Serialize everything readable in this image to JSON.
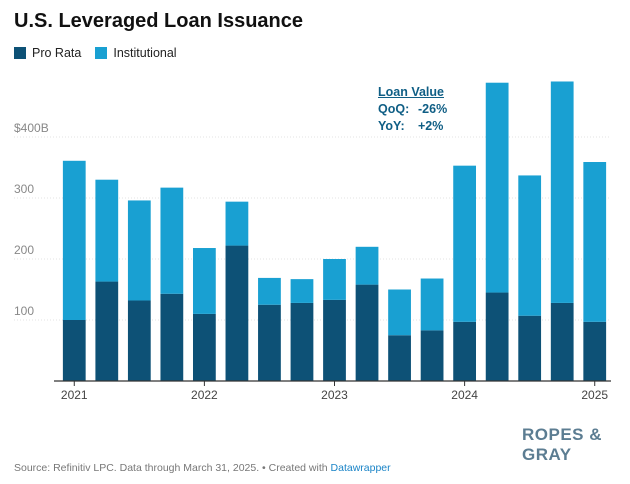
{
  "title": "U.S. Leveraged Loan Issuance",
  "legend": [
    {
      "label": "Pro Rata",
      "color": "#0d5176"
    },
    {
      "label": "Institutional",
      "color": "#19a0d2"
    }
  ],
  "annotation": {
    "head": "Loan Value",
    "qoq_label": "QoQ:",
    "qoq_value": "-26%",
    "yoy_label": "YoY:",
    "yoy_value": "+2%"
  },
  "logo": "ROPES & GRAY",
  "source": {
    "text": "Source: Refinitiv LPC. Data through March 31, 2025. • Created with ",
    "link": "Datawrapper"
  },
  "chart_data": {
    "type": "bar",
    "stacked": true,
    "title": "U.S. Leveraged Loan Issuance",
    "categories": [
      "2021 Q1",
      "2021 Q2",
      "2021 Q3",
      "2021 Q4",
      "2022 Q1",
      "2022 Q2",
      "2022 Q3",
      "2022 Q4",
      "2023 Q1",
      "2023 Q2",
      "2023 Q3",
      "2023 Q4",
      "2024 Q1",
      "2024 Q2",
      "2024 Q3",
      "2024 Q4",
      "2025 Q1"
    ],
    "x_tick_labels": [
      {
        "index": 0,
        "label": "2021"
      },
      {
        "index": 4,
        "label": "2022"
      },
      {
        "index": 8,
        "label": "2023"
      },
      {
        "index": 12,
        "label": "2024"
      },
      {
        "index": 16,
        "label": "2025"
      }
    ],
    "series": [
      {
        "name": "Pro Rata",
        "color": "#0d5176",
        "values": [
          100,
          163,
          132,
          143,
          110,
          222,
          125,
          128,
          133,
          158,
          75,
          83,
          97,
          145,
          107,
          128,
          97
        ]
      },
      {
        "name": "Institutional",
        "color": "#19a0d2",
        "values": [
          261,
          167,
          164,
          174,
          108,
          72,
          44,
          39,
          67,
          62,
          75,
          85,
          256,
          344,
          230,
          363,
          262
        ]
      }
    ],
    "y_ticks": [
      {
        "value": 100,
        "label": "100"
      },
      {
        "value": 200,
        "label": "200"
      },
      {
        "value": 300,
        "label": "300"
      },
      {
        "value": 400,
        "label": "$400B"
      }
    ],
    "ylim": [
      0,
      500
    ],
    "grid": true,
    "legend_position": "top-left"
  }
}
